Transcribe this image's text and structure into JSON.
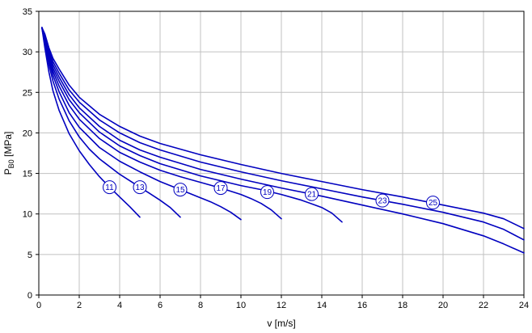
{
  "chart_data": {
    "type": "line",
    "title": "",
    "xlabel": "v [m/s]",
    "ylabel": "P_B0 [MPa]",
    "ylabel_base": "P",
    "ylabel_sub": "B0",
    "ylabel_unit": " [MPa]",
    "xlim": [
      0,
      24
    ],
    "ylim": [
      0,
      35
    ],
    "xticks": [
      0,
      2,
      4,
      6,
      8,
      10,
      12,
      14,
      16,
      18,
      20,
      22,
      24
    ],
    "yticks": [
      0,
      5,
      10,
      15,
      20,
      25,
      30,
      35
    ],
    "grid": true,
    "grid_color": "#c0c0c0",
    "border_color": "#000000",
    "line_color": "#0000bf",
    "legend_position": "none",
    "series": [
      {
        "name": "11",
        "x": [
          0.15,
          0.3,
          0.5,
          0.7,
          1,
          1.5,
          2,
          2.5,
          3,
          3.5,
          4,
          4.5,
          5
        ],
        "y": [
          33,
          30.5,
          27.5,
          25.2,
          22.8,
          19.9,
          17.8,
          16.1,
          14.6,
          13.3,
          12.1,
          10.9,
          9.6
        ],
        "label_at": [
          3.5,
          13.3
        ]
      },
      {
        "name": "13",
        "x": [
          0.15,
          0.3,
          0.5,
          0.7,
          1,
          1.5,
          2,
          2.5,
          3,
          4,
          5,
          5.5,
          6,
          6.5,
          7
        ],
        "y": [
          33,
          31,
          28.4,
          26.4,
          24.2,
          21.5,
          19.5,
          18,
          16.8,
          14.9,
          13.3,
          12.5,
          11.7,
          10.8,
          9.6
        ],
        "label_at": [
          5,
          13.3
        ]
      },
      {
        "name": "15",
        "x": [
          0.15,
          0.3,
          0.5,
          0.7,
          1,
          1.5,
          2,
          3,
          4,
          5,
          6,
          7,
          8,
          8.5,
          9,
          9.5,
          10
        ],
        "y": [
          33,
          31.3,
          28.9,
          27.1,
          25.1,
          22.5,
          20.7,
          18.2,
          16.5,
          15.2,
          14,
          13,
          12,
          11.5,
          10.9,
          10.2,
          9.3
        ],
        "label_at": [
          7,
          13
        ]
      },
      {
        "name": "17",
        "x": [
          0.15,
          0.3,
          0.5,
          0.7,
          1,
          1.5,
          2,
          3,
          4,
          5,
          6,
          7,
          8,
          9,
          10,
          10.5,
          11,
          11.5,
          12
        ],
        "y": [
          33,
          31.5,
          29.3,
          27.6,
          25.8,
          23.4,
          21.7,
          19.3,
          17.6,
          16.4,
          15.4,
          14.6,
          13.9,
          13.2,
          12.4,
          11.9,
          11.3,
          10.5,
          9.4
        ],
        "label_at": [
          9,
          13.2
        ]
      },
      {
        "name": "19",
        "x": [
          0.15,
          0.3,
          0.5,
          0.7,
          1,
          1.5,
          2,
          3,
          4,
          5,
          6,
          8,
          10,
          11,
          12,
          13,
          14,
          14.5,
          15
        ],
        "y": [
          33,
          31.7,
          29.6,
          28,
          26.4,
          24.1,
          22.5,
          20.1,
          18.4,
          17.2,
          16.2,
          14.7,
          13.5,
          13,
          12.4,
          11.7,
          10.8,
          10.1,
          9
        ],
        "label_at": [
          11.3,
          12.7
        ]
      },
      {
        "name": "21",
        "x": [
          0.15,
          0.3,
          0.5,
          0.7,
          1,
          1.5,
          2,
          3,
          4,
          5,
          6,
          8,
          10,
          12,
          14,
          16,
          18,
          20,
          22,
          23,
          24
        ],
        "y": [
          33,
          31.9,
          29.9,
          28.4,
          26.9,
          24.7,
          23.1,
          20.8,
          19.1,
          17.9,
          17,
          15.5,
          14.3,
          13.2,
          12.2,
          11.1,
          10,
          8.8,
          7.3,
          6.3,
          5.2
        ],
        "label_at": [
          13.5,
          12.45
        ]
      },
      {
        "name": "23",
        "x": [
          0.15,
          0.3,
          0.5,
          0.7,
          1,
          1.5,
          2,
          3,
          4,
          5,
          6,
          8,
          10,
          12,
          14,
          16,
          18,
          20,
          22,
          23,
          24
        ],
        "y": [
          33,
          32,
          30.2,
          28.8,
          27.4,
          25.3,
          23.8,
          21.6,
          20,
          18.8,
          17.9,
          16.4,
          15.2,
          14.1,
          13.1,
          12.1,
          11.2,
          10.2,
          9,
          8.1,
          6.8
        ],
        "label_at": [
          17,
          11.65
        ]
      },
      {
        "name": "25",
        "x": [
          0.15,
          0.3,
          0.5,
          0.7,
          1,
          1.5,
          2,
          3,
          4,
          5,
          6,
          8,
          10,
          12,
          14,
          16,
          18,
          20,
          22,
          23,
          24
        ],
        "y": [
          33,
          32.2,
          30.5,
          29.2,
          27.9,
          25.9,
          24.4,
          22.3,
          20.8,
          19.6,
          18.7,
          17.3,
          16.1,
          15,
          14,
          13,
          12.1,
          11.1,
          10.1,
          9.4,
          8.2
        ],
        "label_at": [
          19.5,
          11.4
        ]
      }
    ]
  }
}
